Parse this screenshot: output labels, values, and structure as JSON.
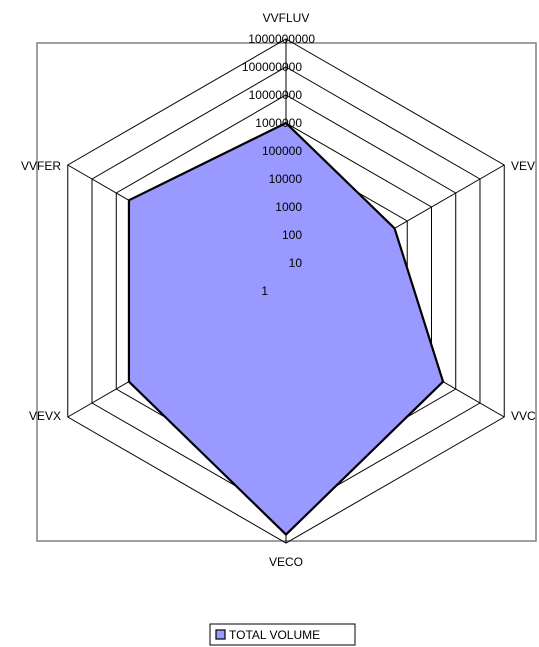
{
  "chart_data": {
    "type": "radar",
    "scale": "log10",
    "rlim": [
      1,
      1000000000
    ],
    "categories": [
      "VVFLUV",
      "VEVL",
      "VVCX",
      "VECO",
      "VEVX",
      "VVFER"
    ],
    "display_labels": [
      "VVFLUV",
      "VEV",
      "VVC",
      "VECO",
      "VEVX",
      "VVFER"
    ],
    "tick_labels": [
      "1",
      "10",
      "100",
      "1000",
      "10000",
      "100000",
      "1000000",
      "10000000",
      "100000000",
      "1000000000"
    ],
    "series": [
      {
        "name": "TOTAL VOLUME",
        "values": [
          1000000,
          30000,
          3000000,
          500000000,
          3000000,
          3000000
        ],
        "fill_color": "#9999ff",
        "line_color": "#000000"
      }
    ],
    "legend": {
      "placement": "bottom",
      "label": "TOTAL VOLUME"
    },
    "grid": true
  },
  "colors": {
    "grid": "#000000",
    "frame": "#808080",
    "series_fill": "#9999ff",
    "series_line": "#000000",
    "background": "#ffffff"
  }
}
